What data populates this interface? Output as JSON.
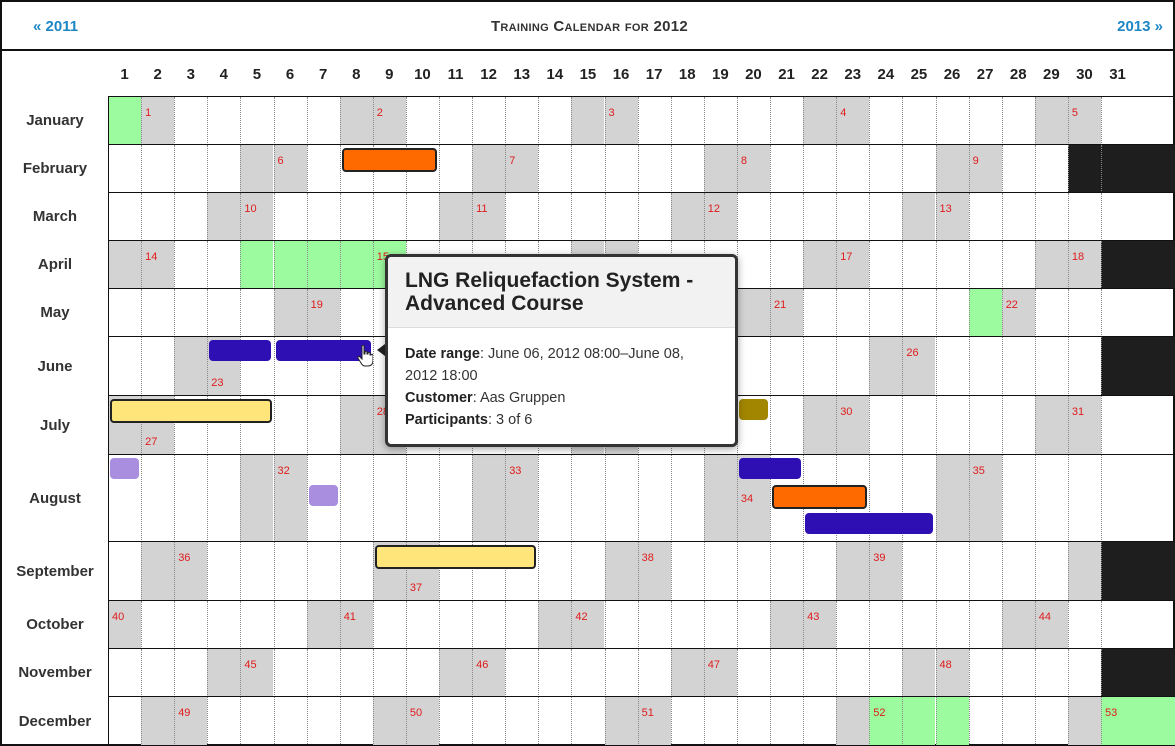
{
  "header": {
    "prev_link": "« 2011",
    "title": "Training Calendar for 2012",
    "next_link": "2013 »"
  },
  "days": [
    "1",
    "2",
    "3",
    "4",
    "5",
    "6",
    "7",
    "8",
    "9",
    "10",
    "11",
    "12",
    "13",
    "14",
    "15",
    "16",
    "17",
    "18",
    "19",
    "20",
    "21",
    "22",
    "23",
    "24",
    "25",
    "26",
    "27",
    "28",
    "29",
    "30",
    "31"
  ],
  "months": [
    {
      "name": "January",
      "days": 31,
      "first_weekday": 6
    },
    {
      "name": "February",
      "days": 29,
      "first_weekday": 2
    },
    {
      "name": "March",
      "days": 31,
      "first_weekday": 3
    },
    {
      "name": "April",
      "days": 30,
      "first_weekday": 6
    },
    {
      "name": "May",
      "days": 31,
      "first_weekday": 1
    },
    {
      "name": "June",
      "days": 30,
      "first_weekday": 4
    },
    {
      "name": "July",
      "days": 31,
      "first_weekday": 6
    },
    {
      "name": "August",
      "days": 31,
      "first_weekday": 2
    },
    {
      "name": "September",
      "days": 30,
      "first_weekday": 5
    },
    {
      "name": "October",
      "days": 31,
      "first_weekday": 0
    },
    {
      "name": "November",
      "days": 30,
      "first_weekday": 3
    },
    {
      "name": "December",
      "days": 31,
      "first_weekday": 5
    }
  ],
  "holidays": [
    {
      "month": 0,
      "day": 1
    },
    {
      "month": 3,
      "day": 5
    },
    {
      "month": 3,
      "day": 6
    },
    {
      "month": 3,
      "day": 7
    },
    {
      "month": 3,
      "day": 8
    },
    {
      "month": 3,
      "day": 9
    },
    {
      "month": 4,
      "day": 27
    },
    {
      "month": 11,
      "day": 24
    },
    {
      "month": 11,
      "day": 25
    },
    {
      "month": 11,
      "day": 26
    },
    {
      "month": 11,
      "day": 31
    }
  ],
  "week_numbers": [
    {
      "month": 0,
      "day": 2,
      "label": "1"
    },
    {
      "month": 0,
      "day": 9,
      "label": "2"
    },
    {
      "month": 0,
      "day": 16,
      "label": "3"
    },
    {
      "month": 0,
      "day": 23,
      "label": "4"
    },
    {
      "month": 0,
      "day": 30,
      "label": "5"
    },
    {
      "month": 1,
      "day": 6,
      "label": "6"
    },
    {
      "month": 1,
      "day": 13,
      "label": "7"
    },
    {
      "month": 1,
      "day": 20,
      "label": "8"
    },
    {
      "month": 1,
      "day": 27,
      "label": "9"
    },
    {
      "month": 2,
      "day": 5,
      "label": "10"
    },
    {
      "month": 2,
      "day": 12,
      "label": "11"
    },
    {
      "month": 2,
      "day": 19,
      "label": "12"
    },
    {
      "month": 2,
      "day": 26,
      "label": "13"
    },
    {
      "month": 3,
      "day": 2,
      "label": "14"
    },
    {
      "month": 3,
      "day": 9,
      "label": "15"
    },
    {
      "month": 3,
      "day": 23,
      "label": "17"
    },
    {
      "month": 3,
      "day": 30,
      "label": "18"
    },
    {
      "month": 4,
      "day": 7,
      "label": "19"
    },
    {
      "month": 4,
      "day": 21,
      "label": "21"
    },
    {
      "month": 4,
      "day": 28,
      "label": "22"
    },
    {
      "month": 5,
      "day": 4,
      "label": "23",
      "pos": "bottom"
    },
    {
      "month": 5,
      "day": 25,
      "label": "26"
    },
    {
      "month": 6,
      "day": 2,
      "label": "27",
      "pos": "bottom"
    },
    {
      "month": 6,
      "day": 9,
      "label": "28"
    },
    {
      "month": 6,
      "day": 23,
      "label": "30"
    },
    {
      "month": 6,
      "day": 30,
      "label": "31"
    },
    {
      "month": 7,
      "day": 6,
      "label": "32"
    },
    {
      "month": 7,
      "day": 13,
      "label": "33"
    },
    {
      "month": 7,
      "day": 20,
      "label": "34",
      "pos": "middle"
    },
    {
      "month": 7,
      "day": 27,
      "label": "35"
    },
    {
      "month": 8,
      "day": 3,
      "label": "36"
    },
    {
      "month": 8,
      "day": 10,
      "label": "37",
      "pos": "bottom"
    },
    {
      "month": 8,
      "day": 17,
      "label": "38"
    },
    {
      "month": 8,
      "day": 24,
      "label": "39"
    },
    {
      "month": 9,
      "day": 1,
      "label": "40"
    },
    {
      "month": 9,
      "day": 8,
      "label": "41"
    },
    {
      "month": 9,
      "day": 15,
      "label": "42"
    },
    {
      "month": 9,
      "day": 22,
      "label": "43"
    },
    {
      "month": 9,
      "day": 29,
      "label": "44"
    },
    {
      "month": 10,
      "day": 5,
      "label": "45"
    },
    {
      "month": 10,
      "day": 12,
      "label": "46"
    },
    {
      "month": 10,
      "day": 19,
      "label": "47"
    },
    {
      "month": 10,
      "day": 26,
      "label": "48"
    },
    {
      "month": 11,
      "day": 3,
      "label": "49"
    },
    {
      "month": 11,
      "day": 10,
      "label": "50"
    },
    {
      "month": 11,
      "day": 17,
      "label": "51"
    },
    {
      "month": 11,
      "day": 24,
      "label": "52"
    },
    {
      "month": 11,
      "day": 31,
      "label": "53"
    }
  ],
  "events": [
    {
      "month": 1,
      "start": 8,
      "end": 10,
      "color": "#ff6a00",
      "lane": 0
    },
    {
      "month": 5,
      "start": 4,
      "end": 5,
      "color": "#2d0fb4",
      "lane": 0,
      "noborder": true
    },
    {
      "month": 5,
      "start": 6,
      "end": 8,
      "color": "#2d0fb4",
      "lane": 0,
      "noborder": true
    },
    {
      "month": 6,
      "start": 1,
      "end": 5,
      "color": "#ffe57a",
      "lane": 0
    },
    {
      "month": 6,
      "start": 20,
      "end": 20,
      "color": "#a38600",
      "lane": 0,
      "noborder": true,
      "partial": true
    },
    {
      "month": 7,
      "start": 1,
      "end": 1,
      "color": "#a98ee0",
      "lane": 0,
      "noborder": true
    },
    {
      "month": 7,
      "start": 7,
      "end": 7,
      "color": "#a98ee0",
      "lane": 1,
      "noborder": true
    },
    {
      "month": 7,
      "start": 20,
      "end": 21,
      "color": "#2d0fb4",
      "lane": 0,
      "noborder": true
    },
    {
      "month": 7,
      "start": 21,
      "end": 23,
      "color": "#ff6a00",
      "lane": 1
    },
    {
      "month": 7,
      "start": 22,
      "end": 25,
      "color": "#2d0fb4",
      "lane": 2,
      "noborder": true
    },
    {
      "month": 8,
      "start": 9,
      "end": 13,
      "color": "#ffe57a",
      "lane": 0
    }
  ],
  "popup": {
    "title": "LNG Reliquefaction System - Advanced Course",
    "date_label": "Date range",
    "date_value": ": June 06, 2012 08:00–June 08, 2012 18:00",
    "customer_label": "Customer",
    "customer_value": ": Aas Gruppen",
    "participants_label": "Participants",
    "participants_value": ": 3 of 6"
  },
  "colors": {
    "weekend": "#d3d3d3",
    "holiday": "#9dfb9f",
    "unavailable": "#1e1e1e",
    "week_number": "#e01b1b",
    "link": "#1d86c4"
  }
}
